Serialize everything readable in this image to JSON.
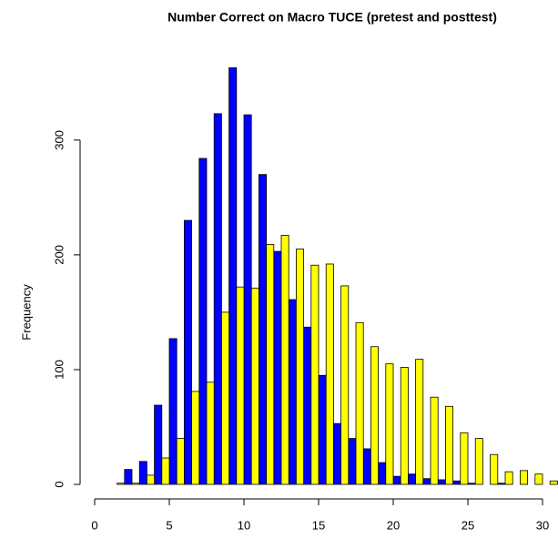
{
  "chart_data": {
    "type": "histogram",
    "title": "Number Correct on Macro TUCE (pretest and posttest)",
    "ylabel": "Frequency",
    "bins": [
      0,
      1,
      2,
      3,
      4,
      5,
      6,
      7,
      8,
      9,
      10,
      11,
      12,
      13,
      14,
      15,
      16,
      17,
      18,
      19,
      20,
      21,
      22,
      23,
      24,
      25,
      26,
      27,
      28,
      29,
      30,
      31
    ],
    "series": [
      {
        "color": "#0000ff",
        "values": [
          0,
          0,
          13,
          20,
          69,
          127,
          230,
          284,
          323,
          363,
          322,
          270,
          203,
          161,
          137,
          95,
          53,
          40,
          31,
          19,
          7,
          9,
          5,
          4,
          3,
          1,
          0,
          1,
          0,
          0,
          0
        ]
      },
      {
        "color": "#ffff00",
        "values": [
          0,
          1,
          1,
          8,
          23,
          40,
          81,
          89,
          150,
          172,
          171,
          209,
          217,
          205,
          191,
          192,
          173,
          141,
          120,
          105,
          102,
          109,
          76,
          68,
          45,
          40,
          26,
          11,
          12,
          9,
          3
        ]
      }
    ],
    "xlim": [
      0,
      31
    ],
    "xticks": [
      0,
      5,
      10,
      15,
      20,
      25,
      30
    ],
    "ylim": [
      0,
      380
    ],
    "yticks": [
      0,
      100,
      200,
      300
    ]
  }
}
